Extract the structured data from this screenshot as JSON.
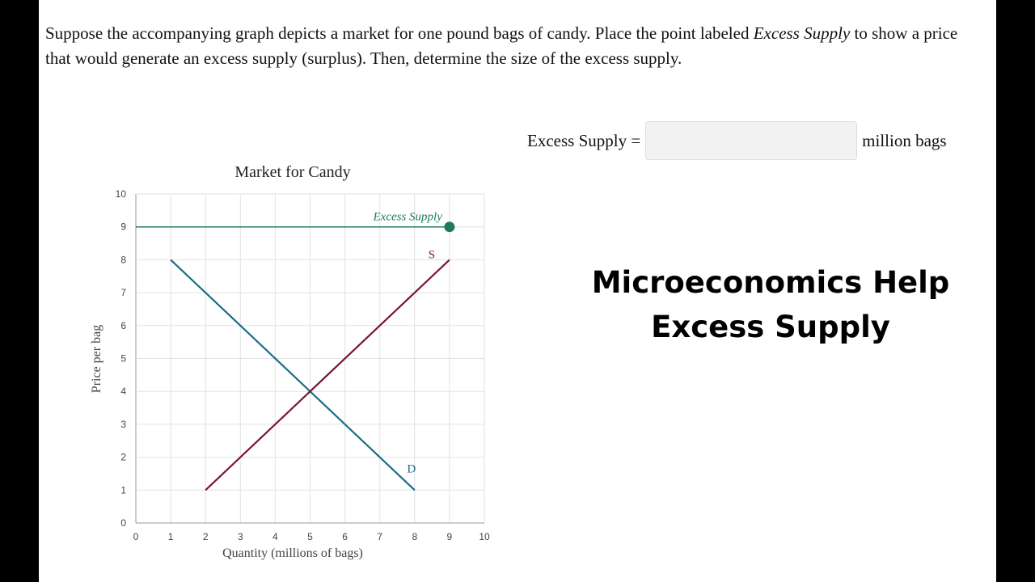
{
  "question": {
    "part1": "Suppose the accompanying graph depicts a market for one pound bags of candy. Place the point labeled ",
    "em1": "Excess Supply",
    "part2": " to show a price that would generate an excess supply (surplus). Then, determine the size of the excess supply."
  },
  "answer": {
    "label": "Excess Supply =",
    "value": "",
    "unit": "million bags"
  },
  "promo": {
    "line1": "Microeconomics Help",
    "line2": "Excess Supply"
  },
  "chart_data": {
    "type": "line",
    "title": "Market for Candy",
    "xlabel": "Quantity (millions of bags)",
    "ylabel": "Price per bag",
    "xlim": [
      0,
      10
    ],
    "ylim": [
      0,
      10
    ],
    "xticks": [
      "0",
      "1",
      "2",
      "3",
      "4",
      "5",
      "6",
      "7",
      "8",
      "9",
      "10"
    ],
    "yticks": [
      "0",
      "1",
      "2",
      "3",
      "4",
      "5",
      "6",
      "7",
      "8",
      "9",
      "10"
    ],
    "grid": true,
    "series": [
      {
        "name": "D",
        "color": "#1a6d86",
        "points": [
          [
            1,
            8
          ],
          [
            8,
            1
          ]
        ]
      },
      {
        "name": "S",
        "color": "#7b1538",
        "points": [
          [
            2,
            1
          ],
          [
            9,
            8
          ]
        ]
      }
    ],
    "excess_supply": {
      "label": "Excess Supply",
      "color": "#1f7a5a",
      "price": 9,
      "point": [
        9,
        9
      ]
    }
  }
}
